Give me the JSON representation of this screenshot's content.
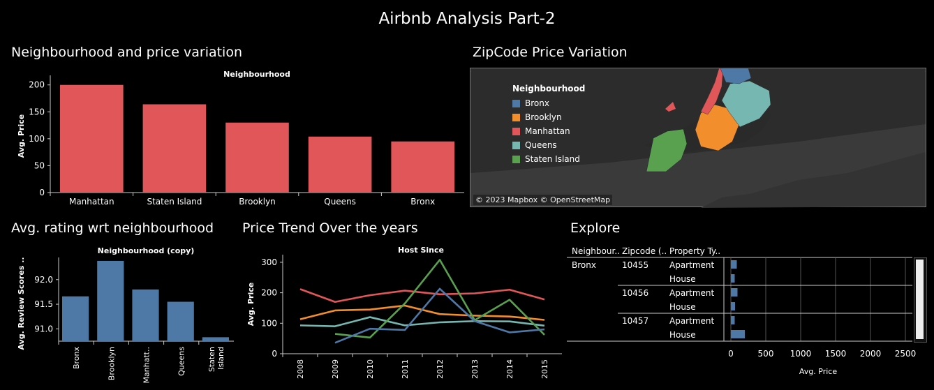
{
  "dashboard": {
    "title": "Airbnb Analysis Part-2"
  },
  "sheets": {
    "neighbourhood_price": "Neighbourhood and price variation",
    "zipcode_map": "ZipCode Price Variation",
    "rating": "Avg. rating wrt neighbourhood",
    "trend": "Price Trend Over the years",
    "explore": "Explore"
  },
  "colors": {
    "Bronx": "#4e79a7",
    "Brooklyn": "#f28e2b",
    "Manhattan": "#e15759",
    "Queens": "#76b7b2",
    "Staten Island": "#59a14f",
    "bar_red": "#e15759",
    "bar_blue": "#4e79a7"
  },
  "map": {
    "legend_title": "Neighbourhood",
    "legend": [
      "Bronx",
      "Brooklyn",
      "Manhattan",
      "Queens",
      "Staten Island"
    ],
    "credit": "© 2023 Mapbox © OpenStreetMap"
  },
  "chart_data": [
    {
      "id": "neigh_price",
      "type": "bar",
      "title": "Neighbourhood",
      "ylabel": "Avg. Price",
      "categories": [
        "Manhattan",
        "Staten Island",
        "Brooklyn",
        "Queens",
        "Bronx"
      ],
      "values": [
        200,
        164,
        130,
        104,
        95
      ],
      "ylim": [
        0,
        210
      ],
      "yticks": [
        0,
        50,
        100,
        150,
        200
      ]
    },
    {
      "id": "rating",
      "type": "bar",
      "title": "Neighbourhood (copy)",
      "ylabel": "Avg. Review Scores ..",
      "categories": [
        "Bronx",
        "Brooklyn",
        "Manhatt..",
        "Queens",
        "Staten Island"
      ],
      "values": [
        91.66,
        92.38,
        91.8,
        91.55,
        90.83
      ],
      "ylim": [
        90.75,
        92.45
      ],
      "yticks": [
        91.0,
        91.5,
        92.0
      ]
    },
    {
      "id": "trend",
      "type": "line",
      "title": "Host Since",
      "ylabel": "Avg. Price",
      "x": [
        "2008",
        "2009",
        "2010",
        "2011",
        "2012",
        "2013",
        "2014",
        "2015"
      ],
      "ylim": [
        0,
        325
      ],
      "yticks": [
        0,
        100,
        200,
        300
      ],
      "series": [
        {
          "name": "Manhattan",
          "values": [
            212,
            170,
            192,
            207,
            195,
            198,
            210,
            178
          ]
        },
        {
          "name": "Brooklyn",
          "values": [
            113,
            142,
            145,
            158,
            130,
            125,
            122,
            111
          ]
        },
        {
          "name": "Queens",
          "values": [
            93,
            90,
            120,
            93,
            103,
            107,
            106,
            92
          ]
        },
        {
          "name": "Staten Island",
          "values": [
            null,
            65,
            53,
            165,
            308,
            110,
            177,
            62
          ]
        },
        {
          "name": "Bronx",
          "values": [
            null,
            36,
            82,
            78,
            213,
            107,
            70,
            80
          ]
        }
      ]
    },
    {
      "id": "explore",
      "type": "table",
      "columns": [
        "Neighbour..",
        "Zipcode (..",
        "Property Ty.."
      ],
      "xlabel": "Avg. Price",
      "xlim": [
        -100,
        2600
      ],
      "xticks": [
        0,
        500,
        1000,
        1500,
        2000,
        2500
      ],
      "rows": [
        {
          "neighbourhood": "Bronx",
          "zipcode": "10455",
          "property": "Apartment",
          "value": 85
        },
        {
          "neighbourhood": "",
          "zipcode": "",
          "property": "House",
          "value": 55
        },
        {
          "neighbourhood": "",
          "zipcode": "10456",
          "property": "Apartment",
          "value": 95
        },
        {
          "neighbourhood": "",
          "zipcode": "",
          "property": "House",
          "value": 60
        },
        {
          "neighbourhood": "",
          "zipcode": "10457",
          "property": "Apartment",
          "value": 55
        },
        {
          "neighbourhood": "",
          "zipcode": "",
          "property": "House",
          "value": 200
        }
      ]
    }
  ]
}
